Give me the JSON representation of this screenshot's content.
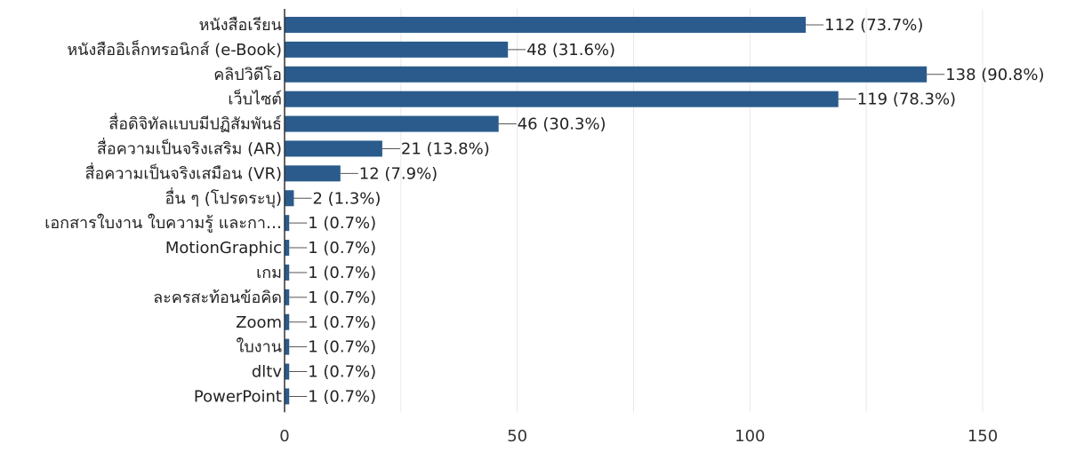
{
  "chart_data": {
    "type": "bar",
    "orientation": "horizontal",
    "title": "",
    "xlabel": "",
    "ylabel": "",
    "xlim": [
      0,
      150
    ],
    "xticks": [
      0,
      50,
      100,
      150
    ],
    "grid": true,
    "bar_color": "#2a5b8c",
    "categories": [
      "หนังสือเรียน",
      "หนังสืออิเล็กทรอนิกส์ (e-Book)",
      "คลิปวิดีโอ",
      "เว็บไซต์",
      "สื่อดิจิทัลแบบมีปฏิสัมพันธ์",
      "สื่อความเป็นจริงเสริม (AR)",
      "สื่อความเป็นจริงเสมือน (VR)",
      "อื่น ๆ (โปรดระบุ)",
      "เอกสารใบงาน ใบความรู้ และกา…",
      "MotionGraphic",
      "เกม",
      "ละครสะท้อนข้อคิด",
      "Zoom",
      "ใบงาน",
      "dltv",
      "PowerPoint"
    ],
    "values": [
      112,
      48,
      138,
      119,
      46,
      21,
      12,
      2,
      1,
      1,
      1,
      1,
      1,
      1,
      1,
      1
    ],
    "value_labels": [
      "112 (73.7%)",
      "48 (31.6%)",
      "138 (90.8%)",
      "119 (78.3%)",
      "46 (30.3%)",
      "21 (13.8%)",
      "12 (7.9%)",
      "2 (1.3%)",
      "1 (0.7%)",
      "1 (0.7%)",
      "1 (0.7%)",
      "1 (0.7%)",
      "1 (0.7%)",
      "1 (0.7%)",
      "1 (0.7%)",
      "1 (0.7%)"
    ]
  }
}
